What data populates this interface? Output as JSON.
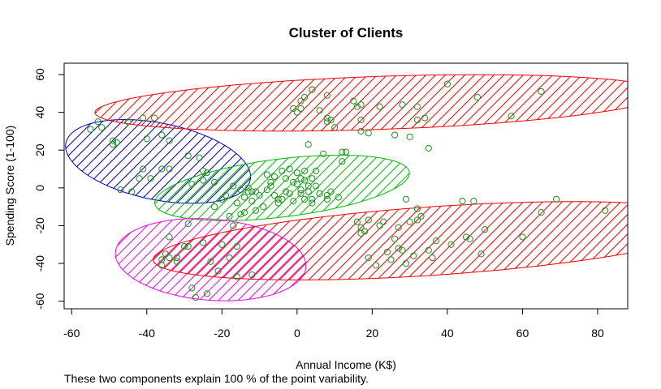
{
  "chart_data": {
    "type": "scatter",
    "title": "Cluster of Clients",
    "xlabel": "Annual Income (K$)",
    "ylabel": "Spending Score (1-100)",
    "xlim": [
      -62,
      88
    ],
    "ylim": [
      -64,
      66
    ],
    "xticks": [
      -60,
      -40,
      -20,
      0,
      20,
      40,
      60,
      80
    ],
    "yticks": [
      -60,
      -40,
      -20,
      0,
      20,
      40,
      60
    ],
    "point_color": "#1f8f1f",
    "clusters": [
      {
        "color": "#0000cc",
        "ellipse": {
          "cx": -37,
          "cy": 14,
          "rx": 27.5,
          "ry": 18.5,
          "angle_deg": -37
        },
        "points": [
          [
            -55,
            31
          ],
          [
            -53,
            35
          ],
          [
            -52,
            32
          ],
          [
            -49,
            25
          ],
          [
            -48,
            24
          ],
          [
            -49,
            23
          ],
          [
            -47,
            -1
          ],
          [
            -45,
            35
          ],
          [
            -44,
            -2
          ],
          [
            -41,
            10
          ],
          [
            -41,
            37
          ],
          [
            -38,
            37
          ],
          [
            -36,
            28
          ],
          [
            -34,
            25
          ],
          [
            -34,
            10
          ],
          [
            -36,
            10
          ],
          [
            -29,
            17
          ],
          [
            -26,
            16
          ],
          [
            -25,
            9
          ],
          [
            -24,
            8
          ],
          [
            -39,
            5
          ],
          [
            -42,
            5
          ],
          [
            -40,
            26
          ]
        ]
      },
      {
        "color": "#ff0000",
        "ellipse": {
          "cx": 22,
          "cy": 45,
          "rx": 76,
          "ry": 14,
          "angle_deg": 4
        },
        "points": [
          [
            -1,
            42
          ],
          [
            0,
            40
          ],
          [
            1,
            46
          ],
          [
            1,
            42
          ],
          [
            4,
            52
          ],
          [
            4,
            52
          ],
          [
            6,
            41
          ],
          [
            8,
            49
          ],
          [
            8,
            37
          ],
          [
            9,
            36
          ],
          [
            10,
            32
          ],
          [
            13,
            19
          ],
          [
            15,
            46
          ],
          [
            16,
            43
          ],
          [
            17,
            36
          ],
          [
            17,
            44
          ],
          [
            17,
            30
          ],
          [
            19,
            29
          ],
          [
            22,
            43
          ],
          [
            26,
            28
          ],
          [
            28,
            44
          ],
          [
            32,
            43
          ],
          [
            32,
            36
          ],
          [
            34,
            37
          ],
          [
            35,
            21
          ],
          [
            30,
            27
          ],
          [
            40,
            55
          ],
          [
            48,
            48
          ],
          [
            57,
            38
          ],
          [
            65,
            51
          ],
          [
            3,
            23
          ],
          [
            8,
            35
          ],
          [
            2,
            48
          ]
        ]
      },
      {
        "color": "#00bb00",
        "ellipse": {
          "cx": -4,
          "cy": 0,
          "rx": 35,
          "ry": 15,
          "angle_deg": 16
        },
        "points": [
          [
            -28,
            2
          ],
          [
            -25,
            4
          ],
          [
            -22,
            3
          ],
          [
            -22,
            -10
          ],
          [
            -20,
            -6
          ],
          [
            -19,
            -4
          ],
          [
            -18,
            -15
          ],
          [
            -17,
            1
          ],
          [
            -16,
            -8
          ],
          [
            -15,
            -14
          ],
          [
            -14,
            -13
          ],
          [
            -14,
            -5
          ],
          [
            -13,
            0
          ],
          [
            -13,
            -2
          ],
          [
            -12,
            -7
          ],
          [
            -11,
            -2
          ],
          [
            -11,
            -12
          ],
          [
            -10,
            -4
          ],
          [
            -9,
            -10
          ],
          [
            -8,
            7
          ],
          [
            -7,
            3
          ],
          [
            -7,
            1
          ],
          [
            -6,
            -4
          ],
          [
            -5,
            -6
          ],
          [
            -5,
            -8
          ],
          [
            -4,
            9
          ],
          [
            -3,
            -2
          ],
          [
            -2,
            10
          ],
          [
            -2,
            -3
          ],
          [
            -1,
            -7
          ],
          [
            0,
            8
          ],
          [
            0,
            2
          ],
          [
            1,
            -3
          ],
          [
            1,
            5
          ],
          [
            2,
            9
          ],
          [
            2,
            -6
          ],
          [
            3,
            1
          ],
          [
            3,
            -2
          ],
          [
            4,
            -6
          ],
          [
            4,
            5
          ],
          [
            5,
            9
          ],
          [
            5,
            1
          ],
          [
            6,
            -3
          ],
          [
            7,
            18
          ],
          [
            8,
            -4
          ],
          [
            8,
            -6
          ],
          [
            9,
            -2
          ],
          [
            11,
            -5
          ],
          [
            12,
            14
          ],
          [
            12,
            19
          ],
          [
            -12,
            -2
          ],
          [
            -15,
            -1
          ],
          [
            -4,
            -6
          ],
          [
            -1,
            3
          ],
          [
            2,
            4
          ],
          [
            -8,
            -1
          ],
          [
            -6,
            6
          ],
          [
            -3,
            5
          ],
          [
            1,
            -1
          ],
          [
            4,
            -8
          ]
        ]
      },
      {
        "color": "#ee00ee",
        "ellipse": {
          "cx": -23,
          "cy": -38,
          "rx": 26,
          "ry": 21,
          "angle_deg": -22
        },
        "points": [
          [
            -36,
            -41
          ],
          [
            -36,
            -38
          ],
          [
            -35,
            -35
          ],
          [
            -34,
            -26
          ],
          [
            -32,
            -37
          ],
          [
            -32,
            -39
          ],
          [
            -30,
            -31
          ],
          [
            -29,
            -19
          ],
          [
            -29,
            -31
          ],
          [
            -28,
            -53
          ],
          [
            -27,
            -58
          ],
          [
            -25,
            -29
          ],
          [
            -24,
            -56
          ],
          [
            -23,
            -39
          ],
          [
            -21,
            -44
          ],
          [
            -20,
            -30
          ],
          [
            -18,
            -37
          ],
          [
            -17,
            -20
          ],
          [
            -16,
            -31
          ],
          [
            -16,
            -47
          ],
          [
            -12,
            -46
          ],
          [
            -34,
            -37
          ]
        ]
      },
      {
        "color": "#ff0000",
        "ellipse": {
          "cx": 37,
          "cy": -28,
          "rx": 76,
          "ry": 18,
          "angle_deg": 8
        },
        "points": [
          [
            16,
            -18
          ],
          [
            17,
            -21
          ],
          [
            17,
            -24
          ],
          [
            18,
            -23
          ],
          [
            19,
            -17
          ],
          [
            19,
            -37
          ],
          [
            21,
            -41
          ],
          [
            22,
            -20
          ],
          [
            23,
            -18
          ],
          [
            24,
            -34
          ],
          [
            25,
            -38
          ],
          [
            26,
            -27
          ],
          [
            27,
            -32
          ],
          [
            28,
            -33
          ],
          [
            29,
            -40
          ],
          [
            29,
            -6
          ],
          [
            30,
            -18
          ],
          [
            31,
            -36
          ],
          [
            32,
            -17
          ],
          [
            32,
            -11
          ],
          [
            35,
            -33
          ],
          [
            36,
            -37
          ],
          [
            37,
            -28
          ],
          [
            41,
            -30
          ],
          [
            44,
            -7
          ],
          [
            45,
            -26
          ],
          [
            46,
            -27
          ],
          [
            47,
            -7
          ],
          [
            49,
            -35
          ],
          [
            50,
            -22
          ],
          [
            60,
            -26
          ],
          [
            65,
            -13
          ],
          [
            69,
            -6
          ],
          [
            82,
            -12
          ],
          [
            27,
            -21
          ],
          [
            33,
            -15
          ]
        ]
      }
    ]
  },
  "caption": "These two components explain 100 % of the point variability."
}
